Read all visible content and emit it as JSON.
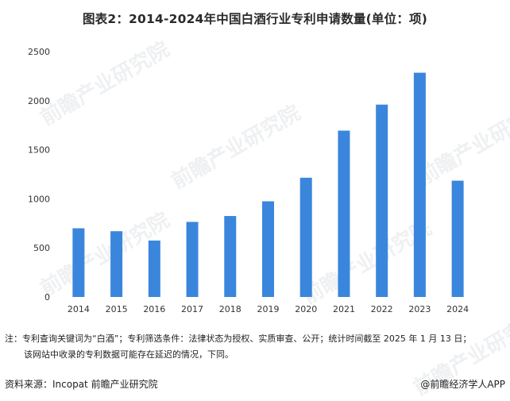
{
  "title": "图表2：2014-2024年中国白酒行业专利申请数量(单位：项)",
  "chart_data": {
    "type": "bar",
    "categories": [
      "2014",
      "2015",
      "2016",
      "2017",
      "2018",
      "2019",
      "2020",
      "2021",
      "2022",
      "2023",
      "2024"
    ],
    "values": [
      700,
      670,
      575,
      765,
      825,
      975,
      1215,
      1695,
      1960,
      2285,
      1185
    ],
    "yticks": [
      0,
      500,
      1000,
      1500,
      2000,
      2500
    ],
    "ylim": [
      0,
      2500
    ],
    "grid": false,
    "bar_color": "#3a86dc"
  },
  "note": {
    "line1": "注：专利查询关键词为“白酒”；专利筛选条件：法律状态为授权、实质审查、公开；统计时间截至 2025 年 1 月 13 日；",
    "line2": "该网站中收录的专利数据可能存在延迟的情况，下同。"
  },
  "footer": {
    "source": "资料来源：Incopat 前瞻产业研究院",
    "brand": "@前瞻经济学人APP"
  },
  "watermark": "前瞻产业研究院"
}
